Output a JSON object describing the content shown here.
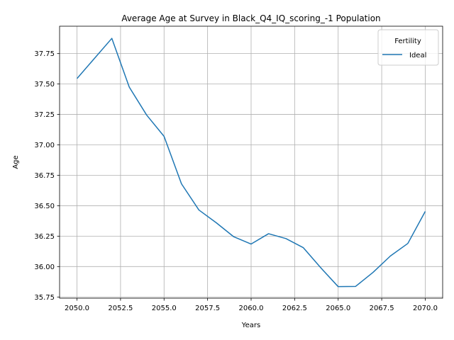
{
  "chart_data": {
    "type": "line",
    "title": "Average Age at Survey in Black_Q4_IQ_scoring_-1 Population",
    "xlabel": "Years",
    "ylabel": "Age",
    "xlim": [
      2049.0,
      2071.0
    ],
    "ylim": [
      35.74,
      37.975
    ],
    "x_ticks": [
      2050.0,
      2052.5,
      2055.0,
      2057.5,
      2060.0,
      2062.5,
      2065.0,
      2067.5,
      2070.0
    ],
    "x_tick_labels": [
      "2050.0",
      "2052.5",
      "2055.0",
      "2057.5",
      "2060.0",
      "2062.5",
      "2065.0",
      "2067.5",
      "2070.0"
    ],
    "y_ticks": [
      35.75,
      36.0,
      36.25,
      36.5,
      36.75,
      37.0,
      37.25,
      37.5,
      37.75
    ],
    "y_tick_labels": [
      "35.75",
      "36.00",
      "36.25",
      "36.50",
      "36.75",
      "37.00",
      "37.25",
      "37.50",
      "37.75"
    ],
    "grid": true,
    "legend": {
      "title": "Fertility",
      "placement": "top-right"
    },
    "series": [
      {
        "name": "Ideal",
        "color": "#1f77b4",
        "x": [
          2050,
          2051,
          2052,
          2053,
          2054,
          2055,
          2056,
          2057,
          2058,
          2059,
          2060,
          2061,
          2062,
          2063,
          2064,
          2065,
          2066,
          2067,
          2068,
          2069,
          2070
        ],
        "y": [
          37.545,
          37.71,
          37.875,
          37.475,
          37.245,
          37.07,
          36.68,
          36.465,
          36.36,
          36.245,
          36.185,
          36.27,
          36.23,
          36.155,
          35.99,
          35.835,
          35.837,
          35.952,
          36.087,
          36.19,
          36.453
        ]
      }
    ]
  }
}
